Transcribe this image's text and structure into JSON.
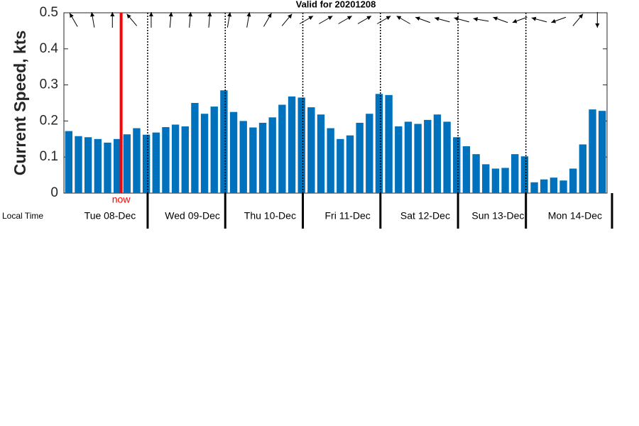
{
  "chart_data": {
    "type": "bar",
    "title": "Valid for 20201208",
    "ylabel": "Current Speed, kts",
    "xlabel": "Local Time",
    "color": "#0072bd",
    "groups": [
      {
        "label": "Tue 08-Dec",
        "values": [
          0.172,
          0.158,
          0.155,
          0.15,
          0.14,
          0.15,
          0.163,
          0.18,
          0.162
        ]
      },
      {
        "label": "Wed 09-Dec",
        "values": [
          0.168,
          0.183,
          0.19,
          0.185,
          0.25,
          0.22,
          0.24,
          0.285
        ]
      },
      {
        "label": "Thu 10-Dec",
        "values": [
          0.225,
          0.2,
          0.182,
          0.195,
          0.21,
          0.245,
          0.268,
          0.265
        ]
      },
      {
        "label": "Fri 11-Dec",
        "values": [
          0.238,
          0.218,
          0.18,
          0.15,
          0.16,
          0.195,
          0.22,
          0.275
        ]
      },
      {
        "label": "Sat 12-Dec",
        "values": [
          0.272,
          0.185,
          0.198,
          0.192,
          0.203,
          0.218,
          0.198,
          0.155
        ]
      },
      {
        "label": "Sun 13-Dec",
        "values": [
          0.13,
          0.108,
          0.08,
          0.068,
          0.07,
          0.108,
          0.102
        ]
      },
      {
        "label": "Mon 14-Dec",
        "values": [
          0.03,
          0.038,
          0.043,
          0.035,
          0.068,
          0.135,
          0.232,
          0.228
        ]
      }
    ],
    "direction_deg": [
      330,
      350,
      0,
      320,
      0,
      5,
      5,
      5,
      10,
      10,
      30,
      40,
      60,
      60,
      60,
      60,
      60,
      300,
      290,
      285,
      285,
      280,
      290,
      250,
      285,
      250,
      40,
      180
    ],
    "now": {
      "label": "now",
      "x": 5.4,
      "color": "#ff0000"
    },
    "ylim": [
      0,
      0.5
    ],
    "yticks": [
      0,
      0.1,
      0.2,
      0.3,
      0.4,
      0.5
    ]
  }
}
